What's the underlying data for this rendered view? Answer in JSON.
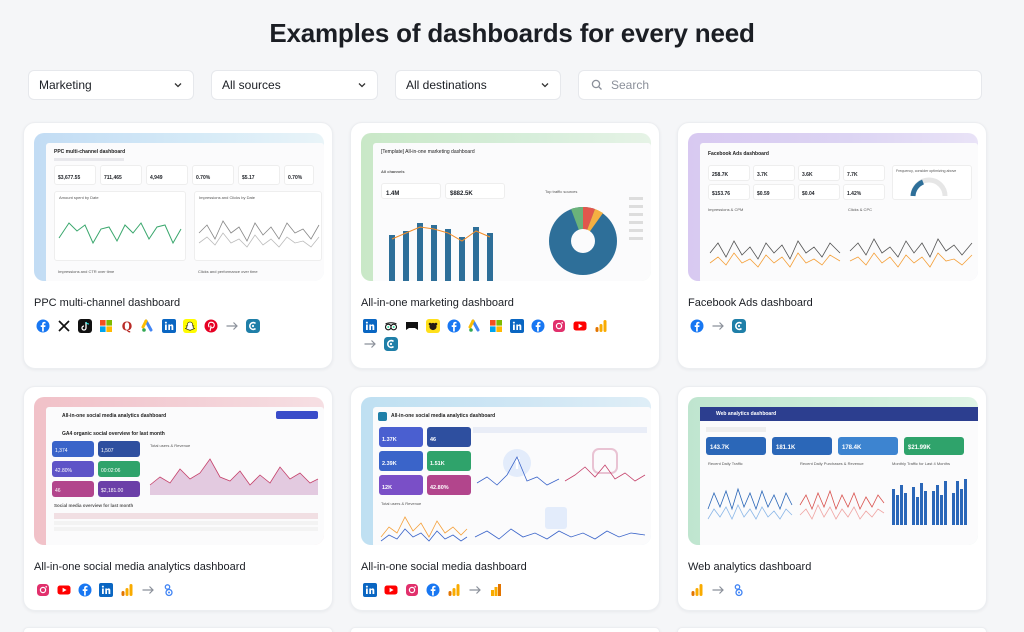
{
  "page": {
    "title": "Examples of dashboards for every need"
  },
  "filters": {
    "category": "Marketing",
    "sources": "All sources",
    "destinations": "All destinations",
    "search_placeholder": "Search"
  },
  "cards": [
    {
      "title": "PPC multi-channel dashboard",
      "thumb": {
        "header": "PPC multi-channel dashboard",
        "kpis": [
          "$3,677.55",
          "711,465",
          "4,949",
          "0.70%",
          "$5.17",
          "0.70%"
        ],
        "panels": [
          "Amount spent by Date",
          "Impressions and Clicks by Date",
          "Impressions and CTR over time",
          "Clicks and performance over time"
        ]
      },
      "icons": [
        "facebook-icon",
        "x-icon",
        "tiktok-icon",
        "microsoft-icon",
        "quora-icon",
        "google-ads-icon",
        "linkedin-icon",
        "snapchat-icon",
        "pinterest-icon",
        "arrow-right-icon",
        "coupler-icon"
      ]
    },
    {
      "title": "All-in-one marketing dashboard",
      "thumb": {
        "header": "[Template] All-in-one marketing dashboard",
        "kpis": [
          "1.4M",
          "$882.5K"
        ],
        "panels": [
          "All channels",
          "Top traffic sources"
        ]
      },
      "icons": [
        "linkedin-icon",
        "tripadvisor-icon",
        "bing-icon",
        "mailchimp-icon",
        "facebook-icon",
        "google-ads-icon",
        "microsoft-icon",
        "linkedin-icon",
        "facebook-icon",
        "instagram-icon",
        "youtube-icon",
        "google-analytics-icon",
        "arrow-right-icon",
        "coupler-icon"
      ]
    },
    {
      "title": "Facebook Ads dashboard",
      "thumb": {
        "header": "Facebook Ads dashboard",
        "kpis": [
          "258.7K",
          "3.7K",
          "3.6K",
          "7.7K",
          "$153.76",
          "$0.59",
          "$0.04",
          "1.42%"
        ],
        "panels": [
          "Impressions & CPM",
          "Clicks & CPC",
          "Frequency, consider optimizing above"
        ]
      },
      "icons": [
        "facebook-icon",
        "arrow-right-icon",
        "coupler-icon"
      ]
    },
    {
      "title": "All-in-one social media analytics dashboard",
      "thumb": {
        "header": "All-in-one social media analytics dashboard",
        "section": "GA4 organic social overview for last month",
        "kpis": [
          "1,374",
          "1,507",
          "42.80%",
          "00:02:06",
          "46",
          "$2,181.00"
        ],
        "panels": [
          "Total users & Revenue",
          "Social media overview for last month"
        ]
      },
      "icons": [
        "instagram-icon",
        "youtube-icon",
        "facebook-icon",
        "linkedin-icon",
        "google-analytics-icon",
        "arrow-right-icon",
        "looker-studio-icon"
      ]
    },
    {
      "title": "All-in-one social media dashboard",
      "thumb": {
        "header": "All-in-one social media analytics dashboard",
        "kpis": [
          "1.37K",
          "46",
          "2.39K",
          "1.51K",
          "12K",
          "42.80%"
        ],
        "panels": [
          "Total users & Revenue"
        ]
      },
      "icons": [
        "linkedin-icon",
        "youtube-icon",
        "instagram-icon",
        "facebook-icon",
        "google-analytics-icon",
        "arrow-right-icon",
        "looker-studio-icon"
      ]
    },
    {
      "title": "Web analytics dashboard",
      "thumb": {
        "header": "Web analytics dashboard",
        "kpis": [
          "143.7K",
          "181.1K",
          "178.4K",
          "$21.99K"
        ],
        "panels": [
          "Recent Daily Traffic",
          "Recent Daily Purchases & Revenue",
          "Monthly Traffic for Last 4 Months"
        ]
      },
      "icons": [
        "google-analytics-icon",
        "arrow-right-icon",
        "looker-studio-icon"
      ]
    }
  ]
}
